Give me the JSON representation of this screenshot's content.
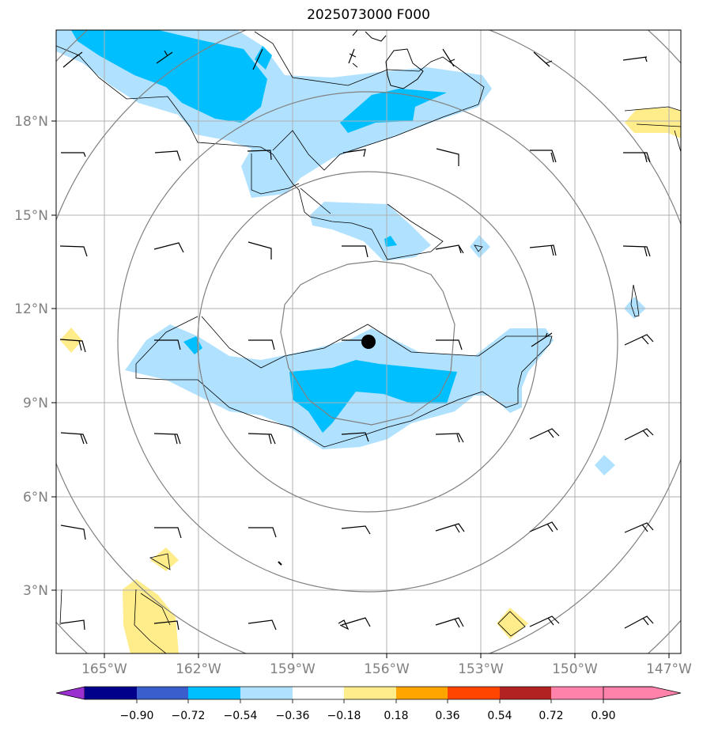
{
  "title": "2025073000 F000",
  "axes": {
    "x_ticks": [
      "165°W",
      "162°W",
      "159°W",
      "156°W",
      "153°W",
      "150°W",
      "147°W"
    ],
    "y_ticks": [
      "18°N",
      "15°N",
      "12°N",
      "9°N",
      "6°N",
      "3°N"
    ]
  },
  "colorbar": {
    "tick_labels": [
      "−0.90",
      "−0.72",
      "−0.54",
      "−0.36",
      "−0.18",
      "0.18",
      "0.36",
      "0.54",
      "0.72",
      "0.90"
    ],
    "colors": [
      "#9b30d0",
      "#00008b",
      "#3a5fcd",
      "#00bfff",
      "#b0e2ff",
      "#ffffff",
      "#ffec8b",
      "#ffa500",
      "#ff4500",
      "#b22222",
      "#ff82ab"
    ]
  },
  "map": {
    "lon_range": [
      -166.2,
      -146.4
    ],
    "lat_range": [
      0.8,
      20.5
    ],
    "storm_center": {
      "lon": -156.5,
      "lat": 10.9
    },
    "range_rings_km": [
      300,
      600,
      900,
      1200,
      1500
    ]
  }
}
